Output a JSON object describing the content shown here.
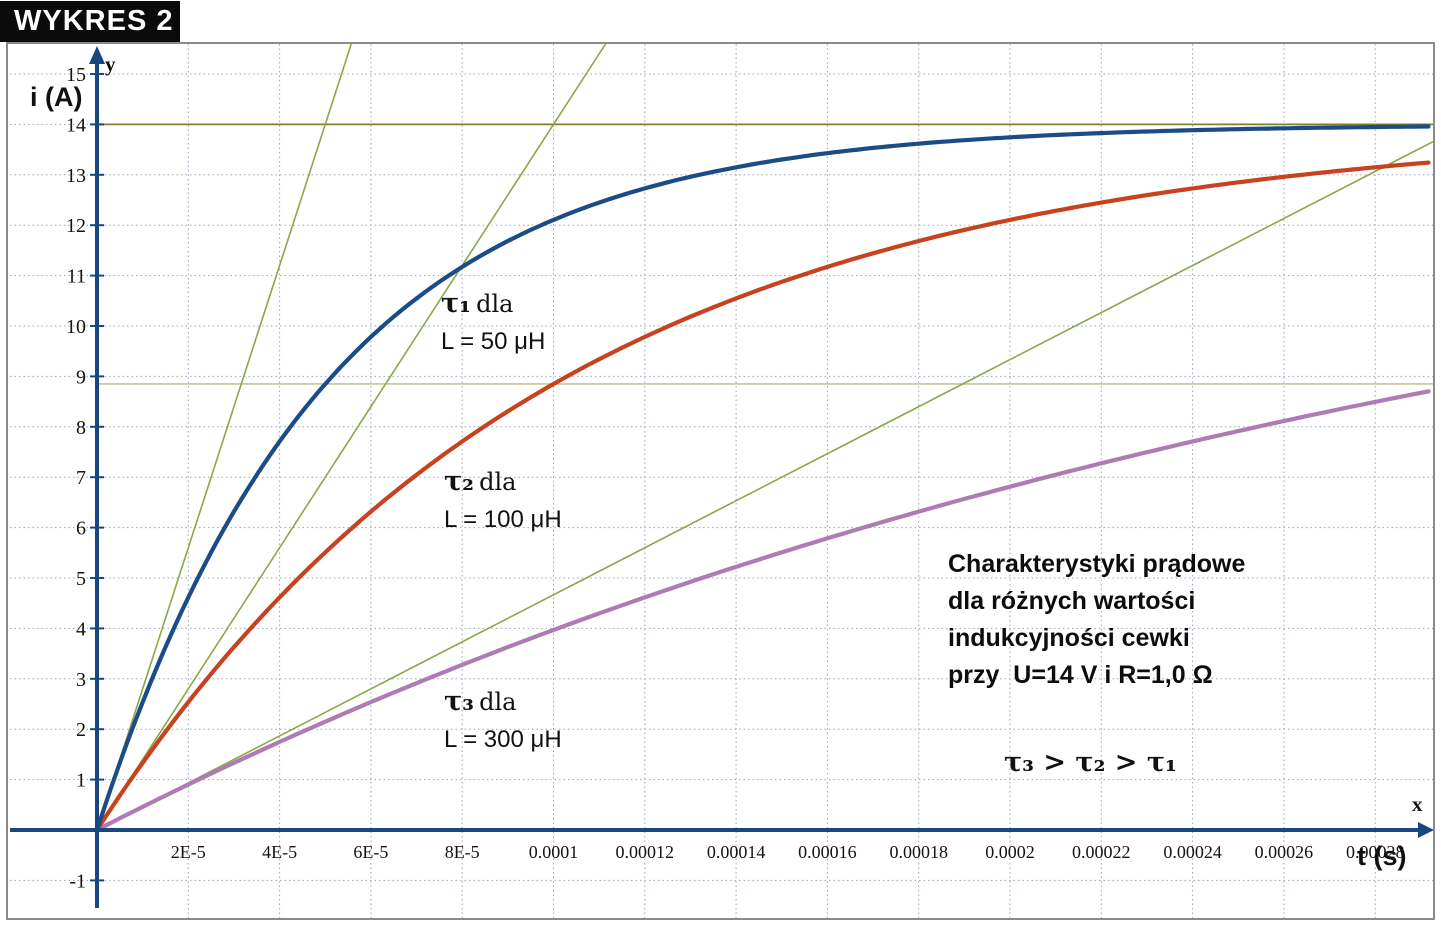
{
  "title_badge": "WYKRES 2",
  "axes": {
    "y_axis_title": "i (A)",
    "x_axis_title": "t (s)",
    "y_letter": "y",
    "x_letter": "x",
    "y_ticks": [
      15,
      14,
      13,
      12,
      11,
      10,
      9,
      8,
      7,
      6,
      5,
      4,
      3,
      2,
      1,
      -1
    ],
    "x_tick_labels": [
      "2E-5",
      "4E-5",
      "6E-5",
      "8E-5",
      "0.0001",
      "0.00012",
      "0.00014",
      "0.00016",
      "0.00018",
      "0.0002",
      "0.00022",
      "0.00024",
      "0.00026",
      "0.00028"
    ]
  },
  "chart_data": {
    "type": "line",
    "title": "Charakterystyki prądowe cewki",
    "xlabel": "t (s)",
    "ylabel": "i (A)",
    "xlim": [
      0,
      0.000293
    ],
    "ylim": [
      -1.8,
      15.6
    ],
    "grid": "dotted; horizontal every 1 A, vertical every 2E-5 s",
    "model": "i(t) = (U/R)*(1 - exp(-t/tau))",
    "U_volts": 14,
    "R_ohms": 1.0,
    "x": [
      0,
      2e-05,
      4e-05,
      6e-05,
      8e-05,
      0.0001,
      0.00012,
      0.00014,
      0.00016,
      0.00018,
      0.0002,
      0.00022,
      0.00024,
      0.00026,
      0.00028
    ],
    "series": [
      {
        "name": "τ1, L = 50 μH",
        "tau_s": 5e-05,
        "color": "#1B4C86",
        "values": [
          0,
          4.62,
          7.71,
          9.78,
          11.17,
          12.11,
          12.73,
          13.15,
          13.43,
          13.62,
          13.74,
          13.83,
          13.89,
          13.92,
          13.95
        ]
      },
      {
        "name": "τ2, L = 100 μH",
        "tau_s": 0.0001,
        "color": "#C7421F",
        "values": [
          0,
          2.54,
          4.62,
          6.32,
          7.71,
          8.85,
          9.78,
          10.55,
          11.17,
          11.69,
          12.11,
          12.45,
          12.73,
          12.96,
          13.15
        ]
      },
      {
        "name": "τ3, L = 300 μH",
        "tau_s": 0.0003,
        "color": "#AF7BB5",
        "values": [
          0,
          0.9,
          1.75,
          2.54,
          3.28,
          3.97,
          4.62,
          5.22,
          5.79,
          6.32,
          6.81,
          7.28,
          7.71,
          8.12,
          8.5
        ]
      }
    ],
    "tangent_lines": [
      {
        "for": "τ1",
        "slope_A_per_s": 280000,
        "color": "#8CA64A"
      },
      {
        "for": "τ2",
        "slope_A_per_s": 140000,
        "color": "#8CA64A"
      },
      {
        "for": "τ3",
        "slope_A_per_s": 46666.7,
        "color": "#8CA64A"
      }
    ],
    "reference_lines": [
      {
        "i_value": 14,
        "color": "#827D33"
      },
      {
        "i_value": 8.85,
        "color": "#C6C597"
      }
    ],
    "legend_position": "none"
  },
  "annotations": {
    "series_labels": [
      {
        "tau": "τ₁",
        "word": "dla",
        "inductance": "L = 50 μH"
      },
      {
        "tau": "τ₂",
        "word": "dla",
        "inductance": "L = 100 μH"
      },
      {
        "tau": "τ₃",
        "word": "dla",
        "inductance": "L = 300 μH"
      }
    ],
    "info_box_lines": [
      "Charakterystyki prądowe",
      "dla różnych wartości",
      "indukcyjności cewki",
      "przy  U=14 V i R=1,0 Ω"
    ],
    "tau_inequality": "τ₃ > τ₂ > τ₁"
  },
  "colors": {
    "axis": "#17477F",
    "gridline": "#97A4BB",
    "curve_tau1": "#1B4C86",
    "curve_tau2": "#C7421F",
    "curve_tau3": "#AF7BB5",
    "tangent": "#8CA64A",
    "ref_14": "#827D33",
    "ref_63pct": "#C6C597",
    "badge_bg": "#0B0B0B",
    "badge_text": "#FFFFFF"
  }
}
